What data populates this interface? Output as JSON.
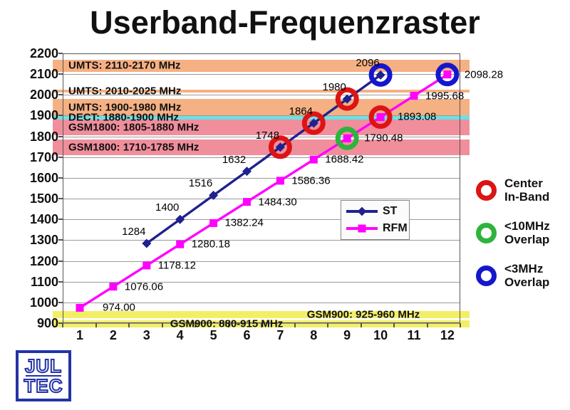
{
  "title": "Userband-Frequenzraster",
  "colors": {
    "grid": "#9a9a9a",
    "axis": "#55565a",
    "background": "#ffffff",
    "band_orange": "#f5b083",
    "band_cyan": "#6fe0e2",
    "band_pink": "#f08e9c",
    "band_yellow": "#f3ef65"
  },
  "chart_data": {
    "type": "line",
    "title": "Userband-Frequenzraster",
    "xlabel": "",
    "ylabel": "",
    "x_ticks": [
      "1",
      "2",
      "3",
      "4",
      "5",
      "6",
      "7",
      "8",
      "9",
      "10",
      "11",
      "12"
    ],
    "y_ticks": [
      900,
      1000,
      1100,
      1200,
      1300,
      1400,
      1500,
      1600,
      1700,
      1800,
      1900,
      2000,
      2100,
      2200
    ],
    "ylim": [
      900,
      2200
    ],
    "xlim": [
      1,
      12
    ],
    "ytick_step": 100,
    "grid": true,
    "legend_position": "center-right-in-plot",
    "series": [
      {
        "name": "ST",
        "color": "#1f218f",
        "marker": "diamond",
        "points": [
          {
            "x": 3,
            "y": 1284,
            "label": "1284"
          },
          {
            "x": 4,
            "y": 1400,
            "label": "1400"
          },
          {
            "x": 5,
            "y": 1516,
            "label": "1516"
          },
          {
            "x": 6,
            "y": 1632,
            "label": "1632"
          },
          {
            "x": 7,
            "y": 1748,
            "label": "1748"
          },
          {
            "x": 8,
            "y": 1864,
            "label": "1864"
          },
          {
            "x": 9,
            "y": 1980,
            "label": "1980"
          },
          {
            "x": 10,
            "y": 2096,
            "label": "2096"
          }
        ]
      },
      {
        "name": "RFM",
        "color": "#ff00ff",
        "marker": "square",
        "points": [
          {
            "x": 1,
            "y": 974.0,
            "label": "974.00"
          },
          {
            "x": 2,
            "y": 1076.06,
            "label": "1076.06"
          },
          {
            "x": 3,
            "y": 1178.12,
            "label": "1178.12"
          },
          {
            "x": 4,
            "y": 1280.18,
            "label": "1280.18"
          },
          {
            "x": 5,
            "y": 1382.24,
            "label": "1382.24"
          },
          {
            "x": 6,
            "y": 1484.3,
            "label": "1484.30"
          },
          {
            "x": 7,
            "y": 1586.36,
            "label": "1586.36"
          },
          {
            "x": 8,
            "y": 1688.42,
            "label": "1688.42"
          },
          {
            "x": 9,
            "y": 1790.48,
            "label": "1790.48"
          },
          {
            "x": 10,
            "y": 1893.08,
            "label": "1893.08"
          },
          {
            "x": 11,
            "y": 1995.68,
            "label": "1995.68"
          },
          {
            "x": 12,
            "y": 2098.28,
            "label": "2098.28"
          }
        ]
      }
    ],
    "bands": [
      {
        "name": "UMTS: 2110-2170 MHz",
        "from": 2110,
        "to": 2170,
        "color": "#f5b083"
      },
      {
        "name": "UMTS: 2010-2025 MHz",
        "from": 2010,
        "to": 2025,
        "color": "#f5b083"
      },
      {
        "name": "UMTS: 1900-1980 MHz",
        "from": 1900,
        "to": 1980,
        "color": "#f5b083"
      },
      {
        "name": "DECT: 1880-1900 MHz",
        "from": 1880,
        "to": 1900,
        "color": "#6fe0e2"
      },
      {
        "name": "GSM1800: 1805-1880 MHz",
        "from": 1805,
        "to": 1880,
        "color": "#f08e9c"
      },
      {
        "name": "GSM1800: 1710-1785 MHz",
        "from": 1710,
        "to": 1785,
        "color": "#f08e9c"
      },
      {
        "name": "GSM900: 925-960 MHz",
        "from": 925,
        "to": 960,
        "color": "#f3ef65",
        "label_align": "center",
        "label_x": 510
      },
      {
        "name": "GSM900: 880-915 MHz",
        "from": 880,
        "to": 915,
        "color": "#f3ef65",
        "label_align": "center",
        "label_x": 318
      }
    ],
    "annotation_colors": {
      "center-in-band": "#dd1414",
      "10mhz-overlap": "#2eb43c",
      "3mhz-overlap": "#1517cd"
    },
    "annotations": [
      {
        "series": "ST",
        "x": 7,
        "kind": "center-in-band"
      },
      {
        "series": "ST",
        "x": 8,
        "kind": "center-in-band"
      },
      {
        "series": "ST",
        "x": 9,
        "kind": "center-in-band"
      },
      {
        "series": "RFM",
        "x": 10,
        "kind": "center-in-band"
      },
      {
        "series": "RFM",
        "x": 9,
        "kind": "10mhz-overlap"
      },
      {
        "series": "ST",
        "x": 10,
        "kind": "3mhz-overlap"
      },
      {
        "series": "RFM",
        "x": 12,
        "kind": "3mhz-overlap"
      }
    ]
  },
  "key": {
    "items": [
      {
        "name": "center-in-band",
        "line1": "Center",
        "line2": "In-Band",
        "color": "#dd1414"
      },
      {
        "name": "10mhz-overlap",
        "line1": "<10MHz",
        "line2": "Overlap",
        "color": "#2eb43c"
      },
      {
        "name": "3mhz-overlap",
        "line1": "<3MHz",
        "line2": "Overlap",
        "color": "#1517cd"
      }
    ]
  },
  "logo": {
    "line1": "JUL",
    "line2": "TEC",
    "color": "#2433a6"
  }
}
